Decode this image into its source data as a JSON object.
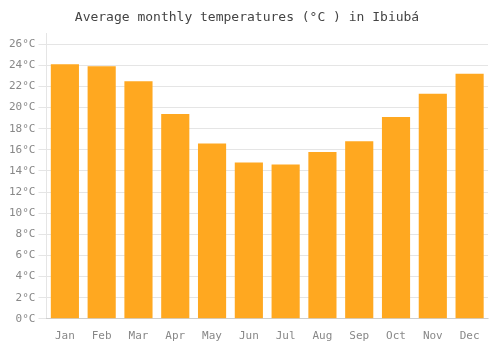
{
  "chart_data": {
    "type": "bar",
    "title": "Average monthly temperatures (°C ) in Ibiubá",
    "categories": [
      "Jan",
      "Feb",
      "Mar",
      "Apr",
      "May",
      "Jun",
      "Jul",
      "Aug",
      "Sep",
      "Oct",
      "Nov",
      "Dec"
    ],
    "values": [
      24.1,
      23.9,
      22.5,
      19.4,
      16.6,
      14.8,
      14.6,
      15.8,
      16.8,
      19.1,
      21.3,
      23.2
    ],
    "color": "#FFA820",
    "ylim": [
      0,
      27
    ],
    "yticks": [
      {
        "value": 0,
        "label": "0°C"
      },
      {
        "value": 2,
        "label": "2°C"
      },
      {
        "value": 4,
        "label": "4°C"
      },
      {
        "value": 6,
        "label": "6°C"
      },
      {
        "value": 8,
        "label": "8°C"
      },
      {
        "value": 10,
        "label": "10°C"
      },
      {
        "value": 12,
        "label": "12°C"
      },
      {
        "value": 14,
        "label": "14°C"
      },
      {
        "value": 16,
        "label": "16°C"
      },
      {
        "value": 18,
        "label": "18°C"
      },
      {
        "value": 20,
        "label": "20°C"
      },
      {
        "value": 22,
        "label": "22°C"
      },
      {
        "value": 24,
        "label": "24°C"
      },
      {
        "value": 26,
        "label": "26°C"
      }
    ],
    "grid": true
  }
}
